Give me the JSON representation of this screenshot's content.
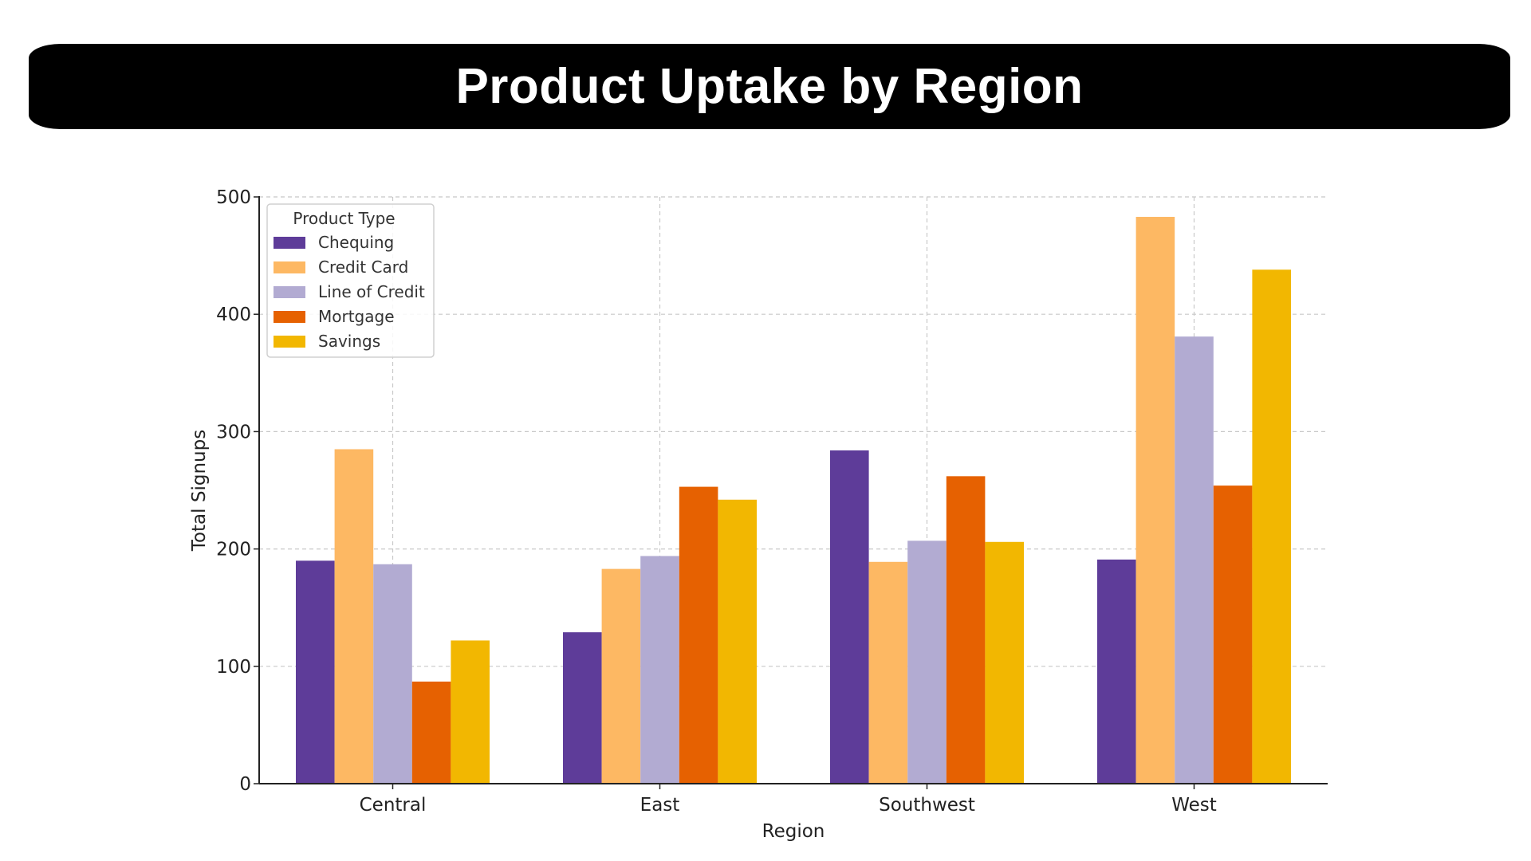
{
  "page": {
    "title": "Product Uptake by Region"
  },
  "chart_data": {
    "type": "bar",
    "title": "Product Uptake by Region",
    "xlabel": "Region",
    "ylabel": "Total Signups",
    "categories": [
      "Central",
      "East",
      "Southwest",
      "West"
    ],
    "ylim": [
      0,
      500
    ],
    "yticks": [
      0,
      100,
      200,
      300,
      400,
      500
    ],
    "grid": true,
    "legend": {
      "title": "Product Type",
      "placement": "top-left"
    },
    "series": [
      {
        "name": "Chequing",
        "color": "#5e3c99",
        "values": [
          190,
          129,
          284,
          191
        ]
      },
      {
        "name": "Credit Card",
        "color": "#fdb863",
        "values": [
          285,
          183,
          189,
          483
        ]
      },
      {
        "name": "Line of Credit",
        "color": "#b2abd2",
        "values": [
          187,
          194,
          207,
          381
        ]
      },
      {
        "name": "Mortgage",
        "color": "#e66101",
        "values": [
          87,
          253,
          262,
          254
        ]
      },
      {
        "name": "Savings",
        "color": "#f2b701",
        "values": [
          122,
          242,
          206,
          438
        ]
      }
    ]
  }
}
